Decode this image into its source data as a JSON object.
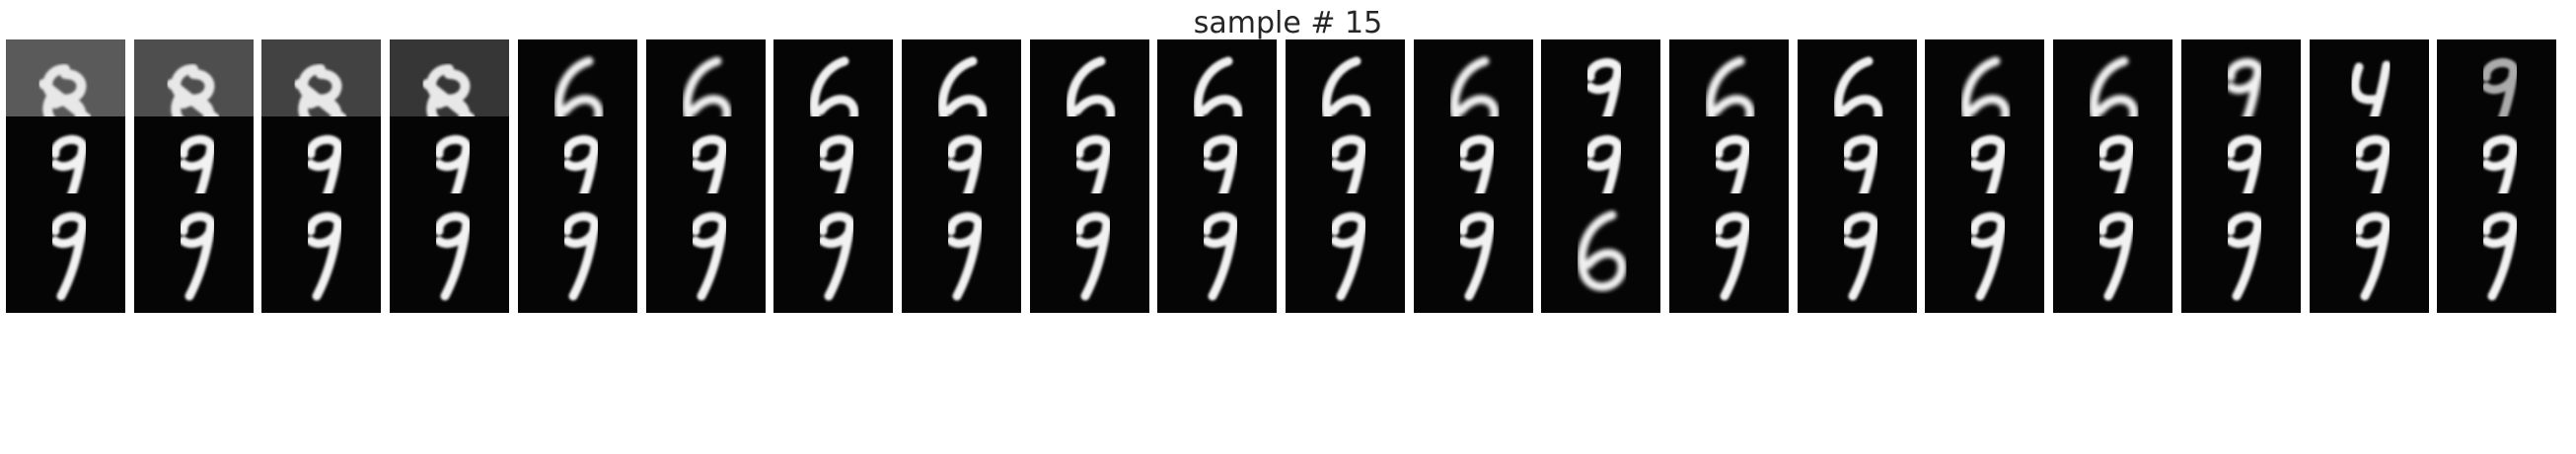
{
  "figure": {
    "title": "sample # 15",
    "rows": 3,
    "cols": 20
  },
  "tiles": [
    [
      "mixed",
      "mixed",
      "mixed",
      "mixed",
      "6-blur",
      "6-blur",
      "6",
      "6",
      "6",
      "6",
      "6",
      "6-blur",
      "9",
      "6-blur",
      "6",
      "6-blur",
      "6-blur",
      "9-blur",
      "4",
      "9-faint"
    ],
    [
      "9",
      "9",
      "9",
      "9",
      "9",
      "9",
      "9",
      "9",
      "9",
      "9",
      "9",
      "9",
      "9",
      "9",
      "9",
      "9",
      "9",
      "9",
      "9",
      "9"
    ],
    [
      "9",
      "9",
      "9",
      "9",
      "9",
      "9",
      "9",
      "9",
      "9",
      "9",
      "9",
      "9",
      "6-blur",
      "9",
      "9",
      "9",
      "9",
      "9",
      "9",
      "9"
    ]
  ]
}
